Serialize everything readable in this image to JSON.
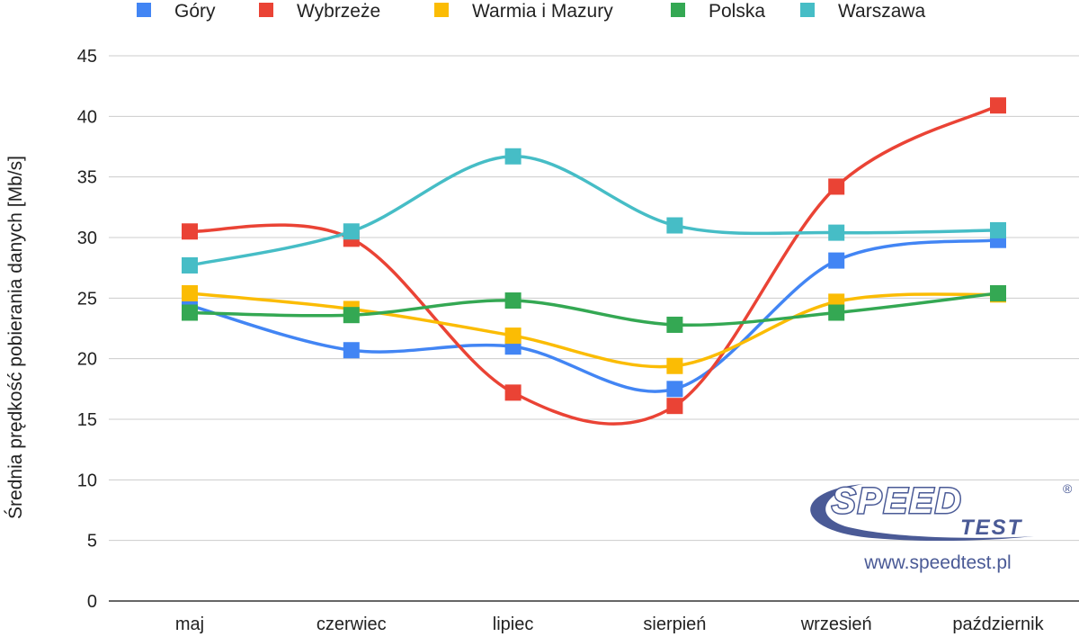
{
  "chart_data": {
    "type": "line",
    "curve": "smooth",
    "categories": [
      "maj",
      "czerwiec",
      "lipiec",
      "sierpień",
      "wrzesień",
      "październik"
    ],
    "ylabel": "Średnia prędkość pobierania danych [Mb/s]",
    "xlabel": "",
    "ylim": [
      0,
      45
    ],
    "yticks": [
      0,
      5,
      10,
      15,
      20,
      25,
      30,
      35,
      40,
      45
    ],
    "grid": true,
    "legend_position": "top",
    "series": [
      {
        "name": "Góry",
        "color": "#4285f4",
        "values": [
          24.4,
          20.7,
          21.0,
          17.5,
          28.1,
          29.8
        ]
      },
      {
        "name": "Wybrzeże",
        "color": "#ea4335",
        "values": [
          30.5,
          29.9,
          17.2,
          16.1,
          34.2,
          40.9
        ]
      },
      {
        "name": "Warmia i Mazury",
        "color": "#fbbc04",
        "values": [
          25.4,
          24.1,
          21.9,
          19.4,
          24.7,
          25.3
        ]
      },
      {
        "name": "Polska",
        "color": "#34a853",
        "values": [
          23.8,
          23.6,
          24.8,
          22.8,
          23.8,
          25.4
        ]
      },
      {
        "name": "Warszawa",
        "color": "#46bdc6",
        "values": [
          27.7,
          30.5,
          36.7,
          31.0,
          30.4,
          30.6
        ]
      }
    ]
  },
  "watermark": {
    "logo_top": "SPEED",
    "logo_bottom": "TEST",
    "registered": "®",
    "url": "www.speedtest.pl",
    "color": "#4a5a96"
  }
}
